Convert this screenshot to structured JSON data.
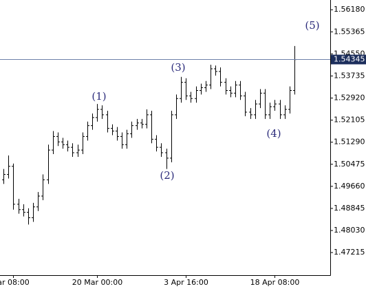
{
  "chart_data": {
    "type": "ohlc",
    "color": "#000000",
    "categories": [
      null,
      null,
      "ar 08:00",
      null,
      null,
      null,
      null,
      null,
      null,
      null,
      null,
      null,
      null,
      null,
      null,
      null,
      null,
      null,
      null,
      "20 Mar 00:00",
      null,
      null,
      null,
      null,
      null,
      null,
      null,
      null,
      null,
      null,
      null,
      null,
      null,
      null,
      null,
      null,
      null,
      "3 Apr 16:00",
      null,
      null,
      null,
      null,
      null,
      null,
      null,
      null,
      null,
      null,
      null,
      null,
      null,
      null,
      null,
      null,
      null,
      "18 Apr 08:00",
      null,
      null,
      null,
      null
    ],
    "open": [
      1.499,
      1.501,
      1.504,
      1.49,
      1.488,
      1.487,
      1.485,
      1.489,
      1.493,
      1.499,
      1.51,
      1.515,
      1.513,
      1.512,
      1.511,
      1.509,
      1.51,
      1.515,
      1.519,
      1.522,
      1.525,
      1.523,
      1.518,
      1.517,
      1.515,
      1.512,
      1.516,
      1.519,
      1.52,
      1.5195,
      1.523,
      1.514,
      1.511,
      1.509,
      1.507,
      1.523,
      1.529,
      1.535,
      1.53,
      1.529,
      1.532,
      1.533,
      1.534,
      1.54,
      1.539,
      1.535,
      1.532,
      1.531,
      1.534,
      1.53,
      1.524,
      1.523,
      1.527,
      1.531,
      1.523,
      1.526,
      1.527,
      1.523,
      1.525,
      1.532
    ],
    "high": [
      1.503,
      1.508,
      1.505,
      1.492,
      1.49,
      1.4885,
      1.4905,
      1.4945,
      1.501,
      1.512,
      1.517,
      1.5165,
      1.5145,
      1.5135,
      1.5125,
      1.512,
      1.5165,
      1.5205,
      1.5235,
      1.527,
      1.5265,
      1.5245,
      1.5195,
      1.5185,
      1.5165,
      1.5175,
      1.5205,
      1.5215,
      1.5215,
      1.525,
      1.5245,
      1.5155,
      1.5125,
      1.5105,
      1.5245,
      1.5305,
      1.537,
      1.5365,
      1.5315,
      1.5335,
      1.5345,
      1.5355,
      1.5415,
      1.5412,
      1.5405,
      1.5365,
      1.5335,
      1.5355,
      1.5355,
      1.5315,
      1.5255,
      1.5285,
      1.5325,
      1.5325,
      1.5275,
      1.5285,
      1.5285,
      1.5265,
      1.5335,
      1.5484
    ],
    "low": [
      1.4975,
      1.4995,
      1.488,
      1.4865,
      1.4855,
      1.4825,
      1.4835,
      1.4875,
      1.4915,
      1.4975,
      1.5085,
      1.5115,
      1.5105,
      1.5095,
      1.5075,
      1.5075,
      1.5085,
      1.5135,
      1.5175,
      1.5205,
      1.5215,
      1.5165,
      1.5155,
      1.5135,
      1.5105,
      1.5105,
      1.5145,
      1.5175,
      1.518,
      1.518,
      1.5125,
      1.5095,
      1.5075,
      1.503,
      1.5055,
      1.5215,
      1.5275,
      1.5285,
      1.5275,
      1.5275,
      1.5305,
      1.5315,
      1.5325,
      1.5375,
      1.5335,
      1.5305,
      1.5295,
      1.5295,
      1.5285,
      1.5225,
      1.5215,
      1.5215,
      1.5255,
      1.5215,
      1.5215,
      1.5245,
      1.5215,
      1.5215,
      1.5235,
      1.5305
    ],
    "close": [
      1.501,
      1.504,
      1.49,
      1.488,
      1.487,
      1.485,
      1.489,
      1.493,
      1.499,
      1.51,
      1.515,
      1.513,
      1.512,
      1.511,
      1.509,
      1.51,
      1.515,
      1.519,
      1.522,
      1.525,
      1.523,
      1.518,
      1.517,
      1.515,
      1.512,
      1.516,
      1.519,
      1.52,
      1.5195,
      1.523,
      1.514,
      1.511,
      1.509,
      1.507,
      1.523,
      1.529,
      1.535,
      1.53,
      1.529,
      1.532,
      1.533,
      1.534,
      1.54,
      1.539,
      1.535,
      1.532,
      1.531,
      1.534,
      1.53,
      1.524,
      1.523,
      1.527,
      1.531,
      1.523,
      1.526,
      1.527,
      1.523,
      1.525,
      1.532,
      1.5434
    ],
    "ylim": [
      1.4638,
      1.5654
    ],
    "yticks": [
      {
        "value": 1.5618,
        "label": "1.56180"
      },
      1.55365,
      {
        "value": 1.5455,
        "label": "1.54550"
      },
      1.53735,
      {
        "value": 1.5292,
        "label": "1.52920"
      },
      1.52105,
      {
        "value": 1.5129,
        "label": "1.51290"
      },
      1.50475,
      {
        "value": 1.4966,
        "label": "1.49660"
      },
      1.48845,
      {
        "value": 1.4803,
        "label": "1.48030"
      },
      1.47215
    ],
    "last_price": 1.54345,
    "last_price_color": "#1c2e5c",
    "annotations": [
      "(1)",
      "(2)",
      "(3)",
      "(4)",
      "(5)"
    ]
  }
}
